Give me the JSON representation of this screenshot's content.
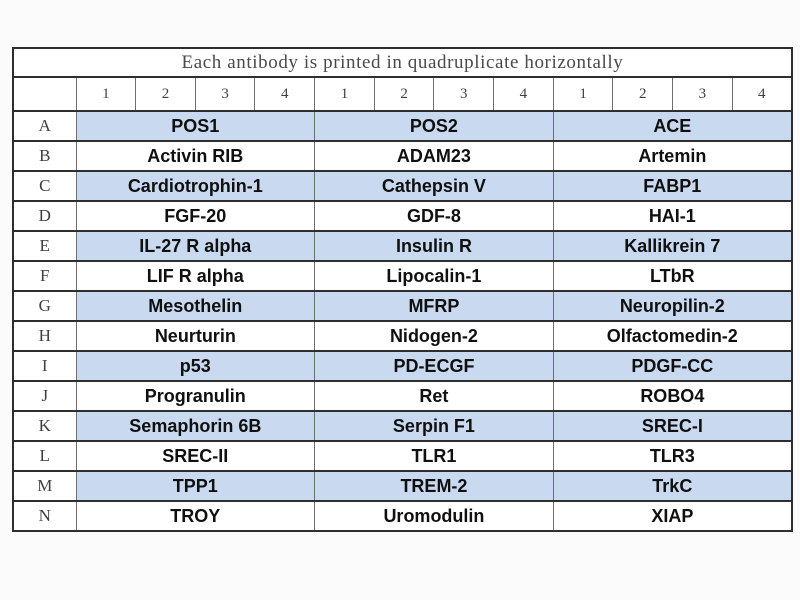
{
  "title": "Each antibody is printed in quadruplicate horizontally",
  "corner_label": "",
  "column_numbers": [
    "1",
    "2",
    "3",
    "4",
    "1",
    "2",
    "3",
    "4",
    "1",
    "2",
    "3",
    "4"
  ],
  "replicates_per_antibody": 4,
  "rows": [
    {
      "label": "A",
      "shaded": true,
      "antibodies": [
        "POS1",
        "POS2",
        "ACE"
      ]
    },
    {
      "label": "B",
      "shaded": false,
      "antibodies": [
        "Activin RIB",
        "ADAM23",
        "Artemin"
      ]
    },
    {
      "label": "C",
      "shaded": true,
      "antibodies": [
        "Cardiotrophin-1",
        "Cathepsin V",
        "FABP1"
      ]
    },
    {
      "label": "D",
      "shaded": false,
      "antibodies": [
        "FGF-20",
        "GDF-8",
        "HAI-1"
      ]
    },
    {
      "label": "E",
      "shaded": true,
      "antibodies": [
        "IL-27 R alpha",
        "Insulin R",
        "Kallikrein 7"
      ]
    },
    {
      "label": "F",
      "shaded": false,
      "antibodies": [
        "LIF R alpha",
        "Lipocalin-1",
        "LTbR"
      ]
    },
    {
      "label": "G",
      "shaded": true,
      "antibodies": [
        "Mesothelin",
        "MFRP",
        "Neuropilin-2"
      ]
    },
    {
      "label": "H",
      "shaded": false,
      "antibodies": [
        "Neurturin",
        "Nidogen-2",
        "Olfactomedin-2"
      ]
    },
    {
      "label": "I",
      "shaded": true,
      "antibodies": [
        "p53",
        "PD-ECGF",
        "PDGF-CC"
      ]
    },
    {
      "label": "J",
      "shaded": false,
      "antibodies": [
        "Progranulin",
        "Ret",
        "ROBO4"
      ]
    },
    {
      "label": "K",
      "shaded": true,
      "antibodies": [
        "Semaphorin 6B",
        "Serpin F1",
        "SREC-I"
      ]
    },
    {
      "label": "L",
      "shaded": false,
      "antibodies": [
        "SREC-II",
        "TLR1",
        "TLR3"
      ]
    },
    {
      "label": "M",
      "shaded": true,
      "antibodies": [
        "TPP1",
        "TREM-2",
        "TrkC"
      ]
    },
    {
      "label": "N",
      "shaded": false,
      "antibodies": [
        "TROY",
        "Uromodulin",
        "XIAP"
      ]
    }
  ],
  "colors": {
    "shaded_row_fill": "#c9daf0",
    "unshaded_row_fill": "#ffffff",
    "border_dark": "#2e2e2e",
    "grid_line": "#6e6e6e",
    "title_text": "#4a4a4a",
    "header_text": "#3f3f3f",
    "cell_text": "#101010",
    "page_background": "#fbfbfb"
  }
}
